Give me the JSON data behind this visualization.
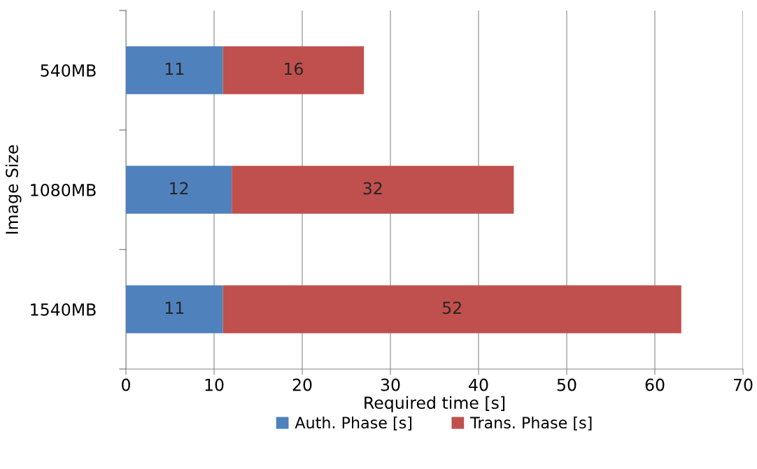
{
  "chart_data": {
    "type": "bar",
    "orientation": "horizontal",
    "stacked": true,
    "xlabel": "Required time [s]",
    "ylabel": "Image Size",
    "categories": [
      "540MB",
      "1080MB",
      "1540MB"
    ],
    "series": [
      {
        "name": "Auth. Phase [s]",
        "color": "#4f81bd",
        "values": [
          11,
          12,
          11
        ]
      },
      {
        "name": "Trans. Phase [s]",
        "color": "#c0504d",
        "values": [
          16,
          32,
          52
        ]
      }
    ],
    "xlim": [
      0,
      70
    ],
    "xticks": [
      0,
      10,
      20,
      30,
      40,
      50,
      60,
      70
    ],
    "grid": "x",
    "legend": "bottom",
    "data_labels": true
  }
}
